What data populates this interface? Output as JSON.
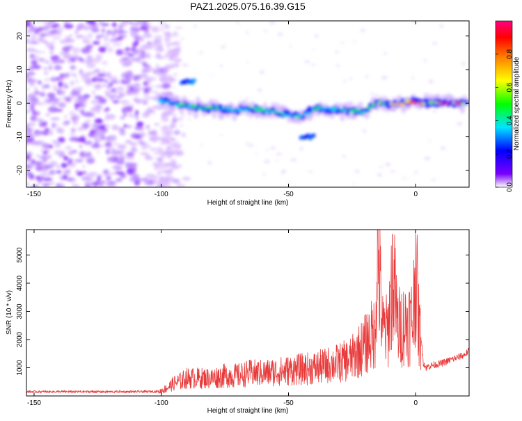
{
  "title": "PAZ1.2025.075.16.39.G15",
  "chart_data": [
    {
      "type": "heatmap",
      "xlabel": "Height of straight line (km)",
      "ylabel": "Frequency (Hz)",
      "xlim": [
        -153,
        21
      ],
      "ylim": [
        -25,
        24.5
      ],
      "xticks": [
        -150,
        -100,
        -50,
        0
      ],
      "yticks": [
        -20,
        -10,
        0,
        10,
        20
      ],
      "colorbar": {
        "label": "Normalized spectral amplitude",
        "range": [
          0,
          1
        ],
        "ticks": [
          0.0,
          0.2,
          0.4,
          0.6,
          0.8
        ],
        "colormap": [
          "#ffffff",
          "#7a00ff",
          "#0000ff",
          "#00e5ff",
          "#00ff00",
          "#ffff00",
          "#ff8000",
          "#ff0000",
          "#ff0080"
        ]
      },
      "noise_region": {
        "x_range": [
          -153,
          -93
        ],
        "level_range": [
          0.02,
          0.18
        ]
      },
      "ridge": [
        {
          "x": -100,
          "y": 0.5,
          "level": 0.35
        },
        {
          "x": -95,
          "y": 0.0,
          "level": 0.4
        },
        {
          "x": -90,
          "y": -1.0,
          "level": 0.45
        },
        {
          "x": -85,
          "y": -1.5,
          "level": 0.45
        },
        {
          "x": -80,
          "y": -1.5,
          "level": 0.45
        },
        {
          "x": -75,
          "y": -2.0,
          "level": 0.45
        },
        {
          "x": -70,
          "y": -2.0,
          "level": 0.45
        },
        {
          "x": -65,
          "y": -1.5,
          "level": 0.4
        },
        {
          "x": -60,
          "y": -2.0,
          "level": 0.4
        },
        {
          "x": -55,
          "y": -2.5,
          "level": 0.4
        },
        {
          "x": -50,
          "y": -3.5,
          "level": 0.4
        },
        {
          "x": -45,
          "y": -4.0,
          "level": 0.4
        },
        {
          "x": -40,
          "y": -1.5,
          "level": 0.4
        },
        {
          "x": -35,
          "y": -2.0,
          "level": 0.4
        },
        {
          "x": -30,
          "y": -2.0,
          "level": 0.45
        },
        {
          "x": -25,
          "y": -2.5,
          "level": 0.45
        },
        {
          "x": -20,
          "y": -2.5,
          "level": 0.45
        },
        {
          "x": -15,
          "y": 0.5,
          "level": 0.5
        },
        {
          "x": -10,
          "y": -0.5,
          "level": 0.55
        },
        {
          "x": -5,
          "y": 0.0,
          "level": 0.75
        },
        {
          "x": 0,
          "y": 0.5,
          "level": 0.7
        },
        {
          "x": 5,
          "y": 0.0,
          "level": 0.7
        },
        {
          "x": 10,
          "y": 0.0,
          "level": 0.75
        },
        {
          "x": 15,
          "y": 0.0,
          "level": 0.7
        },
        {
          "x": 20,
          "y": 0.0,
          "level": 0.65
        }
      ],
      "ridge_branches": [
        {
          "x_range": [
            -92,
            -87
          ],
          "y": 6.5,
          "level": 0.3
        },
        {
          "x_range": [
            -45,
            -40
          ],
          "y": -10.0,
          "level": 0.3
        }
      ]
    },
    {
      "type": "line",
      "xlabel": "Height of straight line (km)",
      "ylabel": "SNR (10 * v/v)",
      "xlim": [
        -153,
        21
      ],
      "ylim": [
        0,
        5900
      ],
      "xticks": [
        -150,
        -100,
        -50,
        0
      ],
      "yticks": [
        1000,
        2000,
        3000,
        4000,
        5000
      ],
      "color": "#e83a3a",
      "series": [
        {
          "x": [
            -153,
            -140,
            -130,
            -120,
            -110,
            -101,
            -98,
            -95,
            -92,
            -90,
            -85,
            -80,
            -75,
            -70,
            -65,
            -60,
            -55,
            -50,
            -45,
            -40,
            -37,
            -35,
            -33,
            -30,
            -27,
            -25,
            -22,
            -20,
            -18,
            -16,
            -15,
            -13,
            -11,
            -9,
            -7,
            -5,
            -3,
            -1,
            0,
            1,
            2,
            3,
            4,
            5,
            7,
            10,
            13,
            16,
            19,
            21
          ],
          "y": [
            150,
            150,
            150,
            150,
            150,
            160,
            300,
            500,
            600,
            700,
            700,
            700,
            800,
            800,
            900,
            900,
            950,
            1000,
            1050,
            1100,
            1150,
            1200,
            1250,
            1300,
            1400,
            1500,
            1800,
            2000,
            2300,
            2500,
            5900,
            2600,
            2500,
            4800,
            2700,
            2800,
            2900,
            3000,
            5400,
            3000,
            2200,
            1200,
            1000,
            1050,
            1100,
            1150,
            1250,
            1350,
            1450,
            1600
          ]
        }
      ]
    }
  ]
}
